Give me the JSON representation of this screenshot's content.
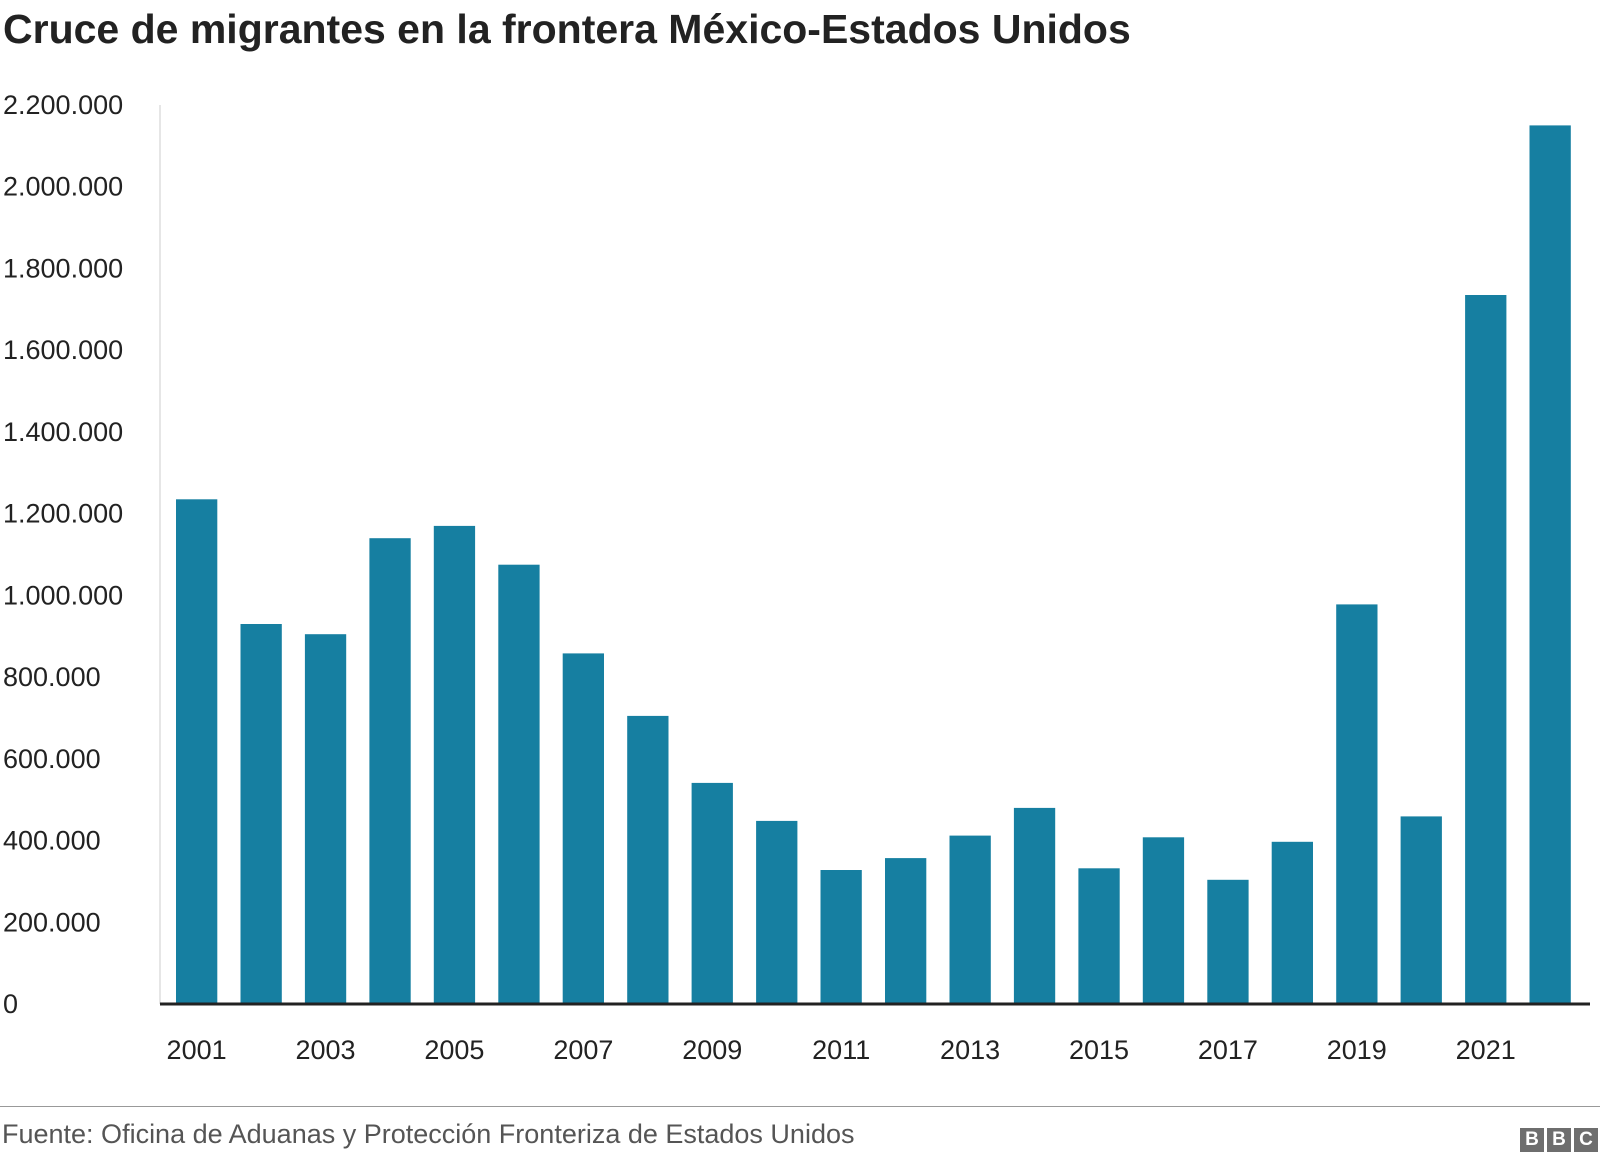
{
  "chart_data": {
    "type": "bar",
    "title": "Cruce de migrantes en la frontera México-Estados Unidos",
    "categories": [
      "2001",
      "2002",
      "2003",
      "2004",
      "2005",
      "2006",
      "2007",
      "2008",
      "2009",
      "2010",
      "2011",
      "2012",
      "2013",
      "2014",
      "2015",
      "2016",
      "2017",
      "2018",
      "2019",
      "2020",
      "2021",
      "2022"
    ],
    "values": [
      1235000,
      930000,
      905000,
      1140000,
      1170000,
      1075000,
      858000,
      705000,
      541000,
      448000,
      328000,
      357000,
      412000,
      480000,
      332000,
      408000,
      304000,
      397000,
      978000,
      459000,
      1735000,
      2150000
    ],
    "x_tick_labels": [
      "2001",
      "2003",
      "2005",
      "2007",
      "2009",
      "2011",
      "2013",
      "2015",
      "2017",
      "2019",
      "2021"
    ],
    "y_ticks": [
      0,
      200000,
      400000,
      600000,
      800000,
      1000000,
      1200000,
      1400000,
      1600000,
      1800000,
      2000000,
      2200000
    ],
    "y_tick_labels": [
      "0",
      "200.000",
      "400.000",
      "600.000",
      "800.000",
      "1.000.000",
      "1.200.000",
      "1.400.000",
      "1.600.000",
      "1.800.000",
      "2.000.000",
      "2.200.000"
    ],
    "ylim": [
      0,
      2200000
    ],
    "xlabel": "",
    "ylabel": "",
    "grid": false,
    "legend": "none",
    "bar_color": "#167fa1"
  },
  "footer": {
    "source": "Fuente: Oficina de Aduanas y Protección Fronteriza de Estados Unidos",
    "logo_letters": [
      "B",
      "B",
      "C"
    ]
  }
}
